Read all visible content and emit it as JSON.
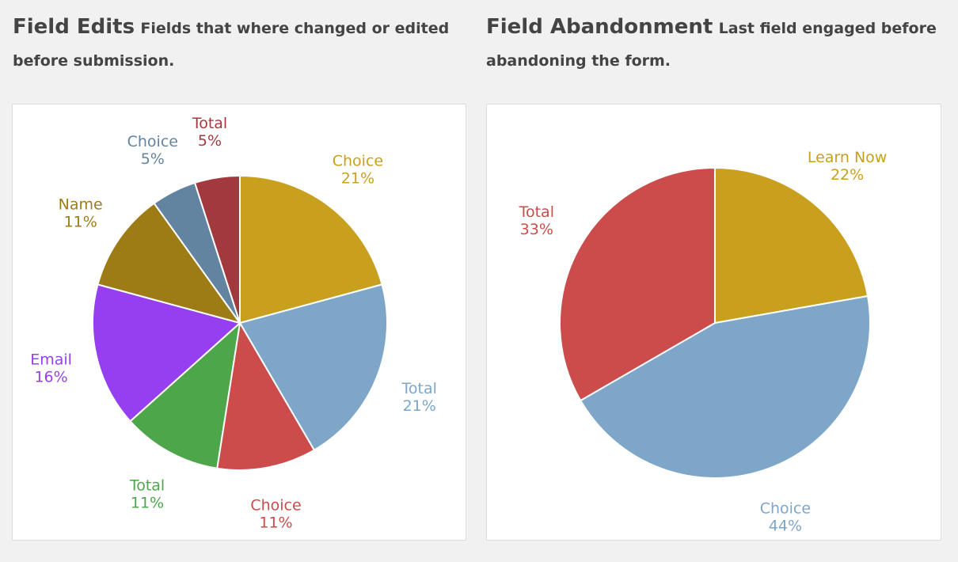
{
  "chart_data": [
    {
      "type": "pie",
      "title": "Field Edits",
      "subtitle": "Fields that where changed or edited before submission.",
      "start_angle_deg": 0,
      "direction": "clockwise",
      "slices": [
        {
          "label": "Choice",
          "value": 21,
          "display": "21%",
          "color": "#c9a01d"
        },
        {
          "label": "Total",
          "value": 21,
          "display": "21%",
          "color": "#7ea6c8"
        },
        {
          "label": "Choice",
          "value": 11,
          "display": "11%",
          "color": "#cc4b4b"
        },
        {
          "label": "Total",
          "value": 11,
          "display": "11%",
          "color": "#4ea64a"
        },
        {
          "label": "Email",
          "value": 16,
          "display": "16%",
          "color": "#963ff0"
        },
        {
          "label": "Name",
          "value": 11,
          "display": "11%",
          "color": "#9e7c15"
        },
        {
          "label": "Choice",
          "value": 5,
          "display": "5%",
          "color": "#6384a0"
        },
        {
          "label": "Total",
          "value": 5,
          "display": "5%",
          "color": "#a1393e"
        }
      ]
    },
    {
      "type": "pie",
      "title": "Field Abandonment",
      "subtitle": "Last field engaged before abandoning the form.",
      "start_angle_deg": 0,
      "direction": "clockwise",
      "slices": [
        {
          "label": "Learn Now",
          "value": 22,
          "display": "22%",
          "color": "#c9a01d"
        },
        {
          "label": "Choice",
          "value": 44,
          "display": "44%",
          "color": "#7ea6c8"
        },
        {
          "label": "Total",
          "value": 33,
          "display": "33%",
          "color": "#cc4b4b"
        }
      ]
    }
  ]
}
